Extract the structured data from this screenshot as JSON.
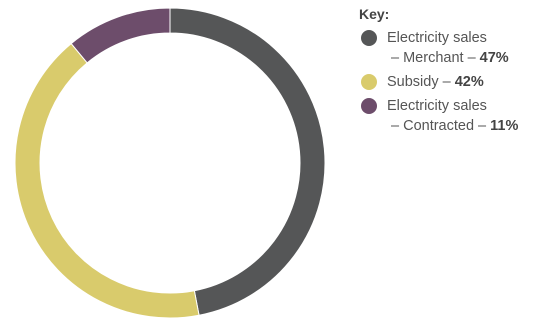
{
  "chart_data": {
    "type": "pie",
    "donut": true,
    "legend_title": "Key:",
    "legend_position": "right",
    "slices": [
      {
        "line1": "Electricity sales",
        "line2": "– Merchant – ",
        "pct_label": "47%",
        "value": 47,
        "color": "#555657"
      },
      {
        "line1": "",
        "line2": "Subsidy – ",
        "pct_label": "42%",
        "value": 42,
        "color": "#d9cb6c"
      },
      {
        "line1": "Electricity sales",
        "line2": "– Contracted – ",
        "pct_label": "11%",
        "value": 11,
        "color": "#6d4d6b"
      }
    ]
  }
}
